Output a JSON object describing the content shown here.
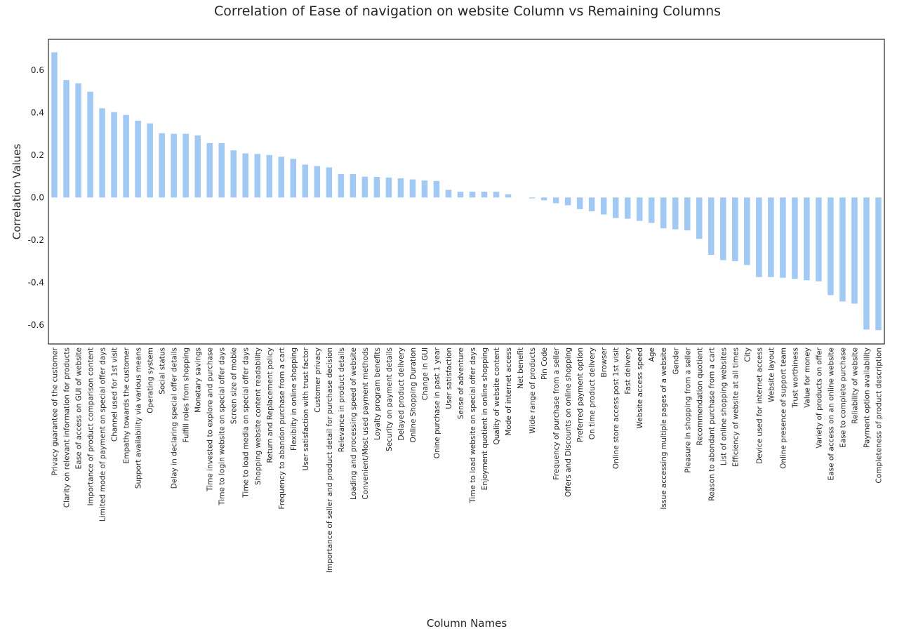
{
  "chart_data": {
    "type": "bar",
    "title": "Correlation of Ease of navigation on website Column vs Remaining Columns",
    "xlabel": "Column Names",
    "ylabel": "Correlation Values",
    "ylim": [
      -0.69,
      0.745
    ],
    "yticks": [
      -0.6,
      -0.4,
      -0.2,
      0.0,
      0.2,
      0.4,
      0.6
    ],
    "ytick_labels": [
      "-0.6",
      "-0.4",
      "-0.2",
      "0.0",
      "0.2",
      "0.4",
      "0.6"
    ],
    "grid": false,
    "bar_color": "#a1c9f4",
    "categories": [
      "Privacy guarantee of the customer",
      "Clarity on relevant information for products",
      "Ease of access on GUI of website",
      "Importance of product comparison content",
      "Limited mode of payment on special offer days",
      "Channel used for 1st visit",
      "Empathy towards the customer",
      "Support availability via various means",
      "Operating system",
      "Social status",
      "Delay in declaring special offer details",
      "Fulfill roles from shopping",
      "Monetary savings",
      "Time invested to explore and purchase",
      "Time to login website on special offer days",
      "Screen size of mobie",
      "Time to load media on special offer days",
      "Shopping website content readability",
      "Return and Replacement policy",
      "Frequency to abandon purchase from a cart",
      "Flexibiity in online shopping",
      "User satisfaction with trust factor",
      "Customer privacy",
      "Importance of seller and product detail for purchase decision",
      "Relevance in product details",
      "Loading and processing speed of website",
      "Convenient/Most used payment methods",
      "Loyalty program benefits",
      "Security on payment details",
      "Delayed product delivery",
      "Online Shopping Duration",
      "Change in GUI",
      "Onine purchase in past 1 year",
      "User satisfaction",
      "Sense of adventure",
      "Time to load website on special offer days",
      "Enjoyment quotient in online shopping",
      "Quality of website content",
      "Mode of internet access",
      "Net benefit",
      "Wide range of products",
      "Pin Code",
      "Frequency of purchase from a seller",
      "Offers and Discounts on online shopping",
      "Preferred payment option",
      "On time product delivery",
      "Browser",
      "Online store access post 1st visit",
      "Fast delivery",
      "Website access speed",
      "Age",
      "Issue accessing multiple pages of a website",
      "Gender",
      "Pleasure in shopping from a seller",
      "Recommendation quotient",
      "Reason to abondant purchase from a cart",
      "List of online shopping websites",
      "Efficiency of website at all times",
      "City",
      "Device used for internet access",
      "Website layout",
      "Online presence of support team",
      "Trust worthiness",
      "Value for money",
      "Variety of products on offer",
      "Ease of access on an online website",
      "Ease to complete purchase",
      "Reliability of website",
      "Payment option availability",
      "Completeness of product description"
    ],
    "values": [
      0.684,
      0.553,
      0.538,
      0.498,
      0.42,
      0.402,
      0.389,
      0.362,
      0.349,
      0.303,
      0.3,
      0.3,
      0.292,
      0.256,
      0.256,
      0.222,
      0.208,
      0.205,
      0.2,
      0.192,
      0.182,
      0.155,
      0.148,
      0.142,
      0.11,
      0.11,
      0.098,
      0.097,
      0.094,
      0.09,
      0.085,
      0.08,
      0.078,
      0.036,
      0.027,
      0.027,
      0.027,
      0.027,
      0.015,
      0.0,
      -0.004,
      -0.013,
      -0.027,
      -0.037,
      -0.055,
      -0.065,
      -0.08,
      -0.097,
      -0.1,
      -0.11,
      -0.12,
      -0.145,
      -0.15,
      -0.155,
      -0.195,
      -0.27,
      -0.295,
      -0.3,
      -0.318,
      -0.375,
      -0.375,
      -0.378,
      -0.383,
      -0.39,
      -0.395,
      -0.46,
      -0.49,
      -0.5,
      -0.622,
      -0.625
    ]
  }
}
